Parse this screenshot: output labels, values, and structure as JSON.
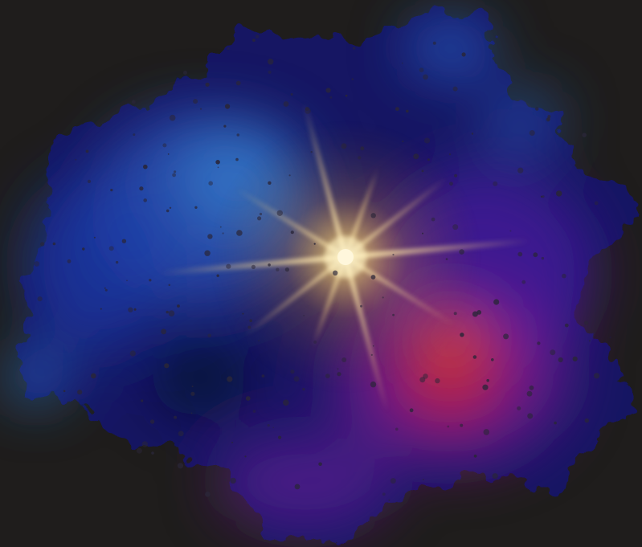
{
  "scene": {
    "subject": "nebula-with-bright-star",
    "colors": {
      "background": "#1f1d1c",
      "deep_blue": "#151a6e",
      "cyan_blue": "#2f7fd0",
      "violet": "#5a1d9a",
      "magenta": "#a0248a",
      "red": "#d4202a",
      "star_gold": "#f6b23a",
      "star_core": "#ffffff"
    }
  }
}
